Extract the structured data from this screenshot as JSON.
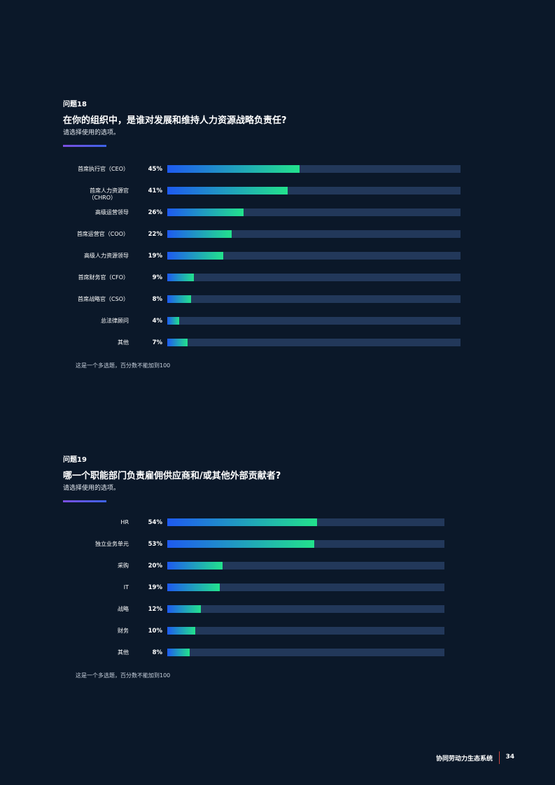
{
  "colors": {
    "background": "#0b1829",
    "track": "#22385a",
    "bar_start": "#1e5af0",
    "bar_end": "#22e28c",
    "accent": "#6a55e6"
  },
  "questions": [
    {
      "label": "问题18",
      "title": "在你的组织中，是谁对发展和维持人力资源战略负责任?",
      "subtitle": "请选择使用的选项。",
      "note": "这是一个多选题，百分数不能加到100",
      "chart_data": {
        "type": "bar",
        "orientation": "horizontal",
        "categories": [
          "首席执行官（CEO）",
          "首席人力资源官（CHRO）",
          "高级运营领导",
          "首席运营官（COO）",
          "高级人力资源领导",
          "首席财务官（CFO）",
          "首席战略官（CSO）",
          "总法律顾问",
          "其他"
        ],
        "category_lines": [
          [
            "首席执行官（CEO）"
          ],
          [
            "首席人力资源官",
            "（CHRO）"
          ],
          [
            "高级运营领导"
          ],
          [
            "首席运营官（COO）"
          ],
          [
            "高级人力资源领导"
          ],
          [
            "首席财务官（CFO）"
          ],
          [
            "首席战略官（CSO）"
          ],
          [
            "总法律顾问"
          ],
          [
            "其他"
          ]
        ],
        "values": [
          45,
          41,
          26,
          22,
          19,
          9,
          8,
          4,
          7
        ],
        "value_labels": [
          "45%",
          "41%",
          "26%",
          "22%",
          "19%",
          "9%",
          "8%",
          "4%",
          "7%"
        ],
        "xlim": [
          0,
          100
        ]
      }
    },
    {
      "label": "问题19",
      "title": "哪一个职能部门负责雇佣供应商和/或其他外部贡献者?",
      "subtitle": "请选择使用的选项。",
      "note": "这是一个多选题，百分数不能加到100",
      "chart_data": {
        "type": "bar",
        "orientation": "horizontal",
        "categories": [
          "HR",
          "独立业务单元",
          "采购",
          "IT",
          "战略",
          "财务",
          "其他"
        ],
        "category_lines": [
          [
            "HR"
          ],
          [
            "独立业务单元"
          ],
          [
            "采购"
          ],
          [
            "IT"
          ],
          [
            "战略"
          ],
          [
            "财务"
          ],
          [
            "其他"
          ]
        ],
        "values": [
          54,
          53,
          20,
          19,
          12,
          10,
          8
        ],
        "value_labels": [
          "54%",
          "53%",
          "20%",
          "19%",
          "12%",
          "10%",
          "8%"
        ],
        "xlim": [
          0,
          100
        ]
      }
    }
  ],
  "footer": {
    "title": "协同劳动力生态系统",
    "page": "34"
  }
}
